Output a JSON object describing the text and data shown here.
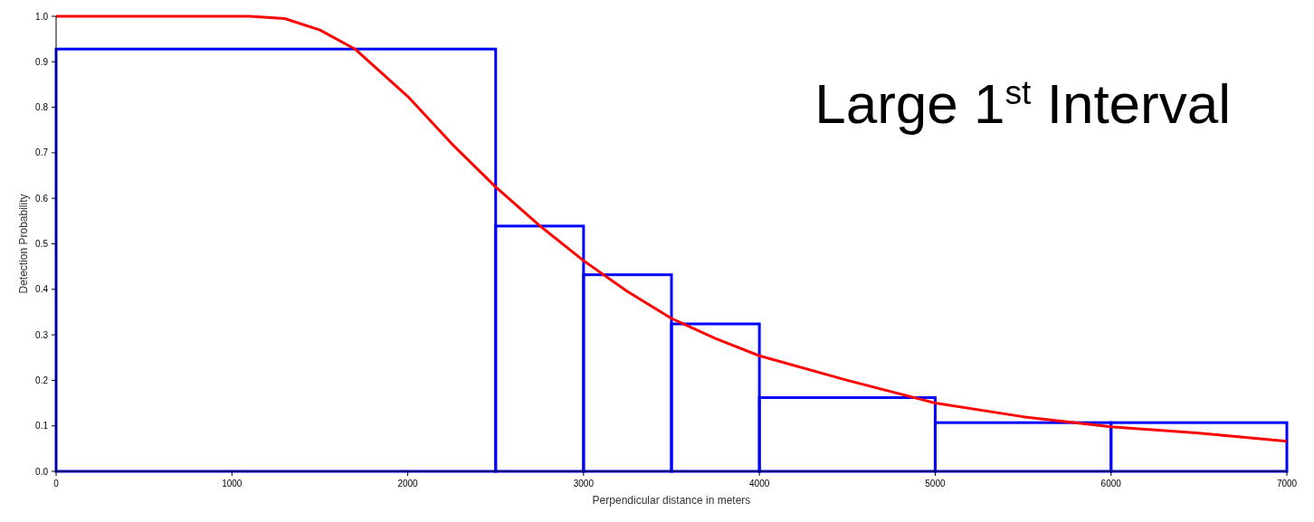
{
  "chart_data": {
    "type": "histogram",
    "xlabel": "Perpendicular distance in meters",
    "ylabel": "Detection Probability",
    "annotations": [
      "Large 1$^{st}$ Interval"
    ],
    "bins": [
      0,
      2500,
      3000,
      3500,
      4000,
      5000,
      6000,
      7000
    ],
    "values": [
      0.928,
      0.539,
      0.432,
      0.324,
      0.162,
      0.107,
      0.107
    ],
    "color": "#0000ff",
    "series": [
      {
        "type": "line",
        "color": "#ff0000",
        "x": [
          0,
          500,
          1000,
          1100,
          1300,
          1500,
          1700,
          2000,
          2250,
          2500,
          2750,
          3000,
          3250,
          3500,
          3750,
          4000,
          4500,
          5000,
          5500,
          6000,
          6500,
          7000
        ],
        "values": [
          1.0,
          1.0,
          1.0,
          1.0,
          0.995,
          0.97,
          0.928,
          0.824,
          0.72,
          0.625,
          0.54,
          0.463,
          0.395,
          0.336,
          0.292,
          0.254,
          0.2,
          0.15,
          0.12,
          0.098,
          0.084,
          0.066
        ]
      }
    ],
    "xlim": [
      0,
      7000
    ],
    "xticks": [
      0,
      1000,
      2000,
      3000,
      4000,
      5000,
      6000,
      7000
    ],
    "ylim": [
      0,
      1
    ],
    "yticks": [
      {
        "value": 0,
        "label": "0.0"
      },
      {
        "value": 0.1,
        "label": "0.1"
      },
      {
        "value": 0.2,
        "label": "0.2"
      },
      {
        "value": 0.3,
        "label": "0.3"
      },
      {
        "value": 0.4,
        "label": "0.4"
      },
      {
        "value": 0.5,
        "label": "0.5"
      },
      {
        "value": 0.6,
        "label": "0.6"
      },
      {
        "value": 0.7,
        "label": "0.7"
      },
      {
        "value": 0.8,
        "label": "0.8"
      },
      {
        "value": 0.9,
        "label": "0.9"
      },
      {
        "value": 1,
        "label": "1.0"
      }
    ],
    "grid": false
  }
}
